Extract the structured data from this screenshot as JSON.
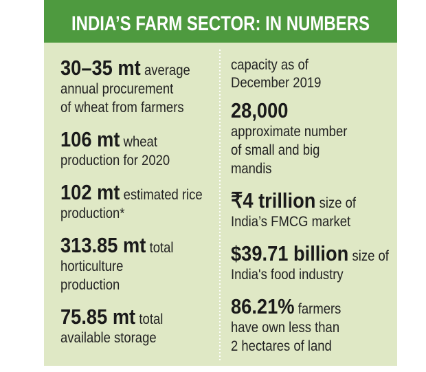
{
  "header": {
    "title": "INDIA’S FARM SECTOR: IN NUMBERS"
  },
  "left": [
    {
      "figure": "30–35 mt",
      "after": "average",
      "lines": [
        "annual procurement",
        "of wheat from farmers"
      ]
    },
    {
      "figure": "106 mt",
      "after": "wheat",
      "lines": [
        "production for 2020"
      ]
    },
    {
      "figure": "102 mt",
      "after": "estimated rice",
      "lines": [
        "production*"
      ]
    },
    {
      "figure": "313.85 mt",
      "after": "total",
      "lines": [
        "horticulture",
        "production"
      ]
    },
    {
      "figure": "75.85 mt",
      "after": "total",
      "lines": [
        "available storage"
      ]
    }
  ],
  "right": [
    {
      "lines": [
        "capacity as of",
        "December 2019"
      ]
    },
    {
      "figure": "28,000",
      "lines": [
        "approximate number",
        "of small and big",
        "mandis"
      ]
    },
    {
      "figure": "₹4 trillion",
      "after": "size of",
      "lines": [
        "India’s FMCG market"
      ]
    },
    {
      "figure": "$39.71 billion",
      "after": "size of",
      "lines": [
        "India's food industry"
      ]
    },
    {
      "figure": "86.21%",
      "after": "farmers",
      "lines": [
        "have own less than",
        "2 hectares of land"
      ]
    }
  ]
}
